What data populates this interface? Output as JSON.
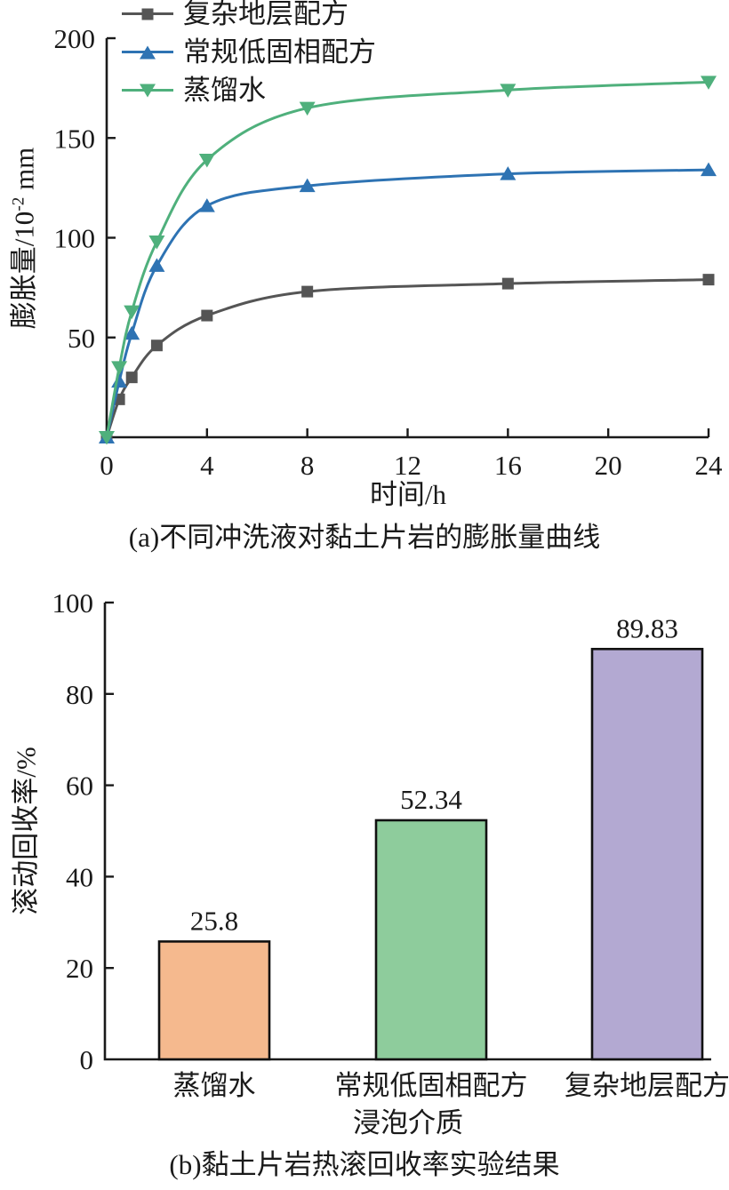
{
  "figure": {
    "caption_a": "(a)不同冲洗液对黏土片岩的膨胀量曲线",
    "caption_b": "(b)黏土片岩热滚回收率实验结果"
  },
  "colors": {
    "axis": "#1a1a1a",
    "text": "#1a1a1a",
    "series_gray": "#555555",
    "series_blue": "#2e73b3",
    "series_green": "#4fb07c",
    "bar_orange": "#f5b98e",
    "bar_green": "#8ecc9c",
    "bar_purple": "#b3a9d2"
  },
  "chart_data": [
    {
      "type": "line",
      "xlabel": "时间/h",
      "ylabel": "膨胀量/10-2 mm",
      "ylabel_parts": {
        "base": "膨胀量/10",
        "sup": "-2",
        "unit": " mm"
      },
      "xlim": [
        0,
        24
      ],
      "ylim": [
        0,
        200
      ],
      "xticks": [
        0,
        4,
        8,
        12,
        16,
        20,
        24
      ],
      "yticks": [
        50,
        100,
        150,
        200
      ],
      "grid": false,
      "legend_position": "top-left",
      "x": [
        0,
        0.5,
        1,
        2,
        4,
        8,
        16,
        24
      ],
      "series": [
        {
          "name": "复杂地层配方",
          "marker": "square",
          "color": "#555555",
          "values": [
            0,
            19,
            30,
            46,
            61,
            73,
            77,
            79
          ]
        },
        {
          "name": "常规低固相配方",
          "marker": "triangle-up",
          "color": "#2e73b3",
          "values": [
            0,
            28,
            52,
            86,
            116,
            126,
            132,
            134
          ]
        },
        {
          "name": "蒸馏水",
          "marker": "triangle-down",
          "color": "#4fb07c",
          "values": [
            0,
            35,
            63,
            98,
            139,
            165,
            174,
            178
          ]
        }
      ]
    },
    {
      "type": "bar",
      "xlabel": "浸泡介质",
      "ylabel": "滚动回收率/%",
      "ylim": [
        0,
        100
      ],
      "yticks": [
        0,
        20,
        40,
        60,
        80,
        100
      ],
      "grid": false,
      "categories": [
        "蒸馏水",
        "常规低固相配方",
        "复杂地层配方"
      ],
      "values": [
        25.8,
        52.34,
        89.83
      ],
      "value_labels": [
        "25.8",
        "52.34",
        "89.83"
      ],
      "bar_colors": [
        "#f5b98e",
        "#8ecc9c",
        "#b3a9d2"
      ],
      "bar_border": "#111111"
    }
  ]
}
